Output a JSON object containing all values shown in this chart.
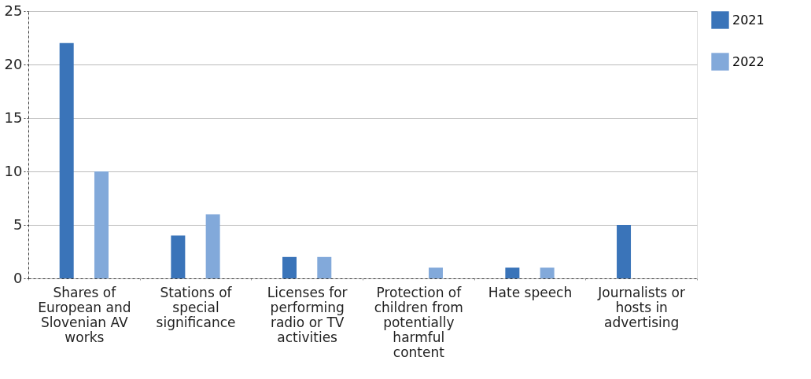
{
  "chart_data": {
    "type": "bar",
    "categories": [
      "Shares of European and Slovenian AV works",
      "Stations of special significance",
      "Licenses for performing radio or TV activities",
      "Protection of children from potentially harmful content",
      "Hate speech",
      "Journalists or hosts in advertising"
    ],
    "series": [
      {
        "name": "2021",
        "color": "#3a74b9",
        "values": [
          22,
          4,
          2,
          0,
          1,
          5
        ]
      },
      {
        "name": "2022",
        "color": "#82a9da",
        "values": [
          10,
          6,
          2,
          1,
          1,
          0
        ]
      }
    ],
    "ylim": [
      0,
      25
    ],
    "yticks": [
      0,
      5,
      10,
      15,
      20,
      25
    ],
    "grid": "y",
    "legend": "top right"
  }
}
